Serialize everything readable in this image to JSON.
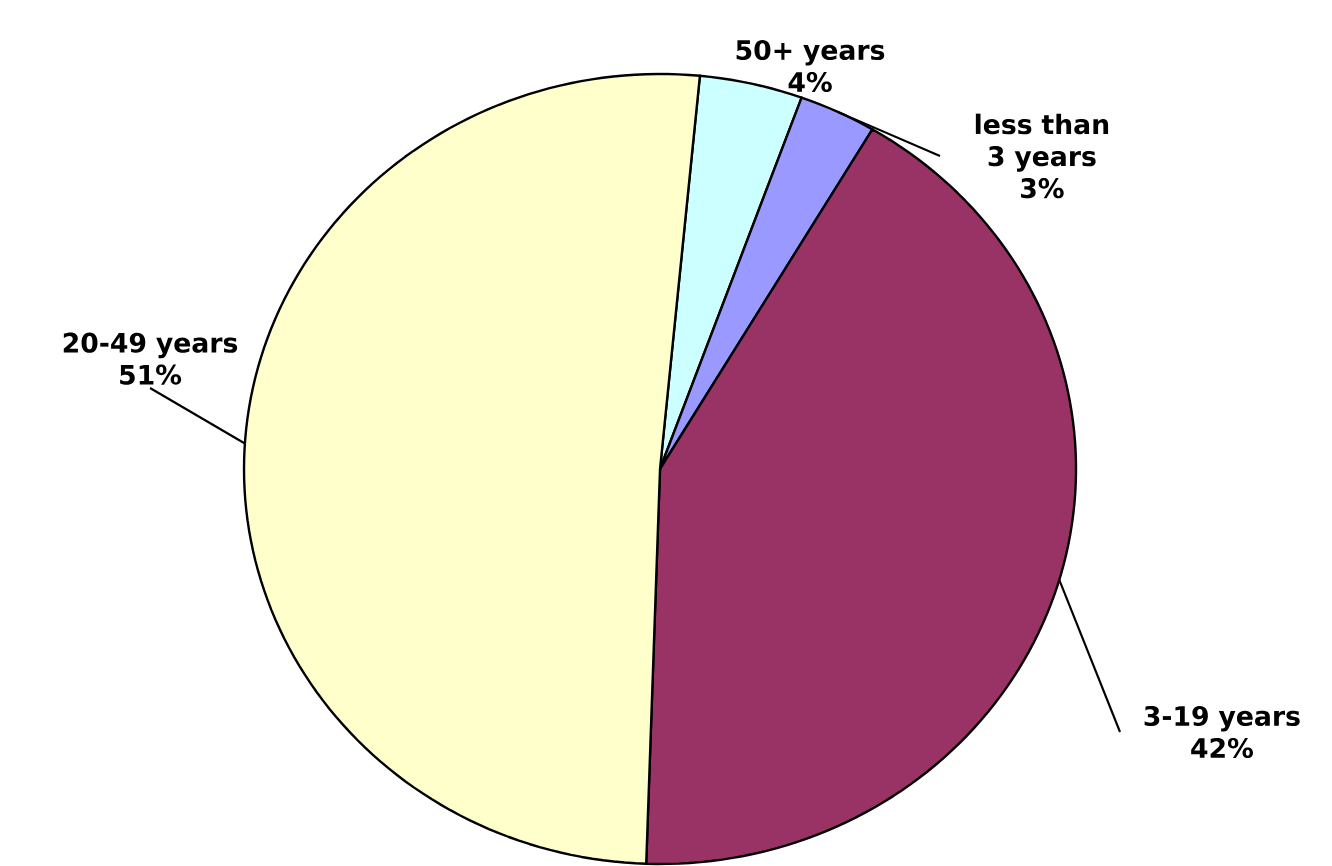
{
  "chart_data": {
    "type": "pie",
    "categories": [
      "50+ years",
      "less than 3 years",
      "3-19 years",
      "20-49 years"
    ],
    "values": [
      4,
      3,
      42,
      51
    ],
    "value_labels": [
      "4%",
      "3%",
      "42%",
      "51%"
    ],
    "colors": [
      "#ccffff",
      "#9999ff",
      "#993366",
      "#ffffcc"
    ]
  }
}
